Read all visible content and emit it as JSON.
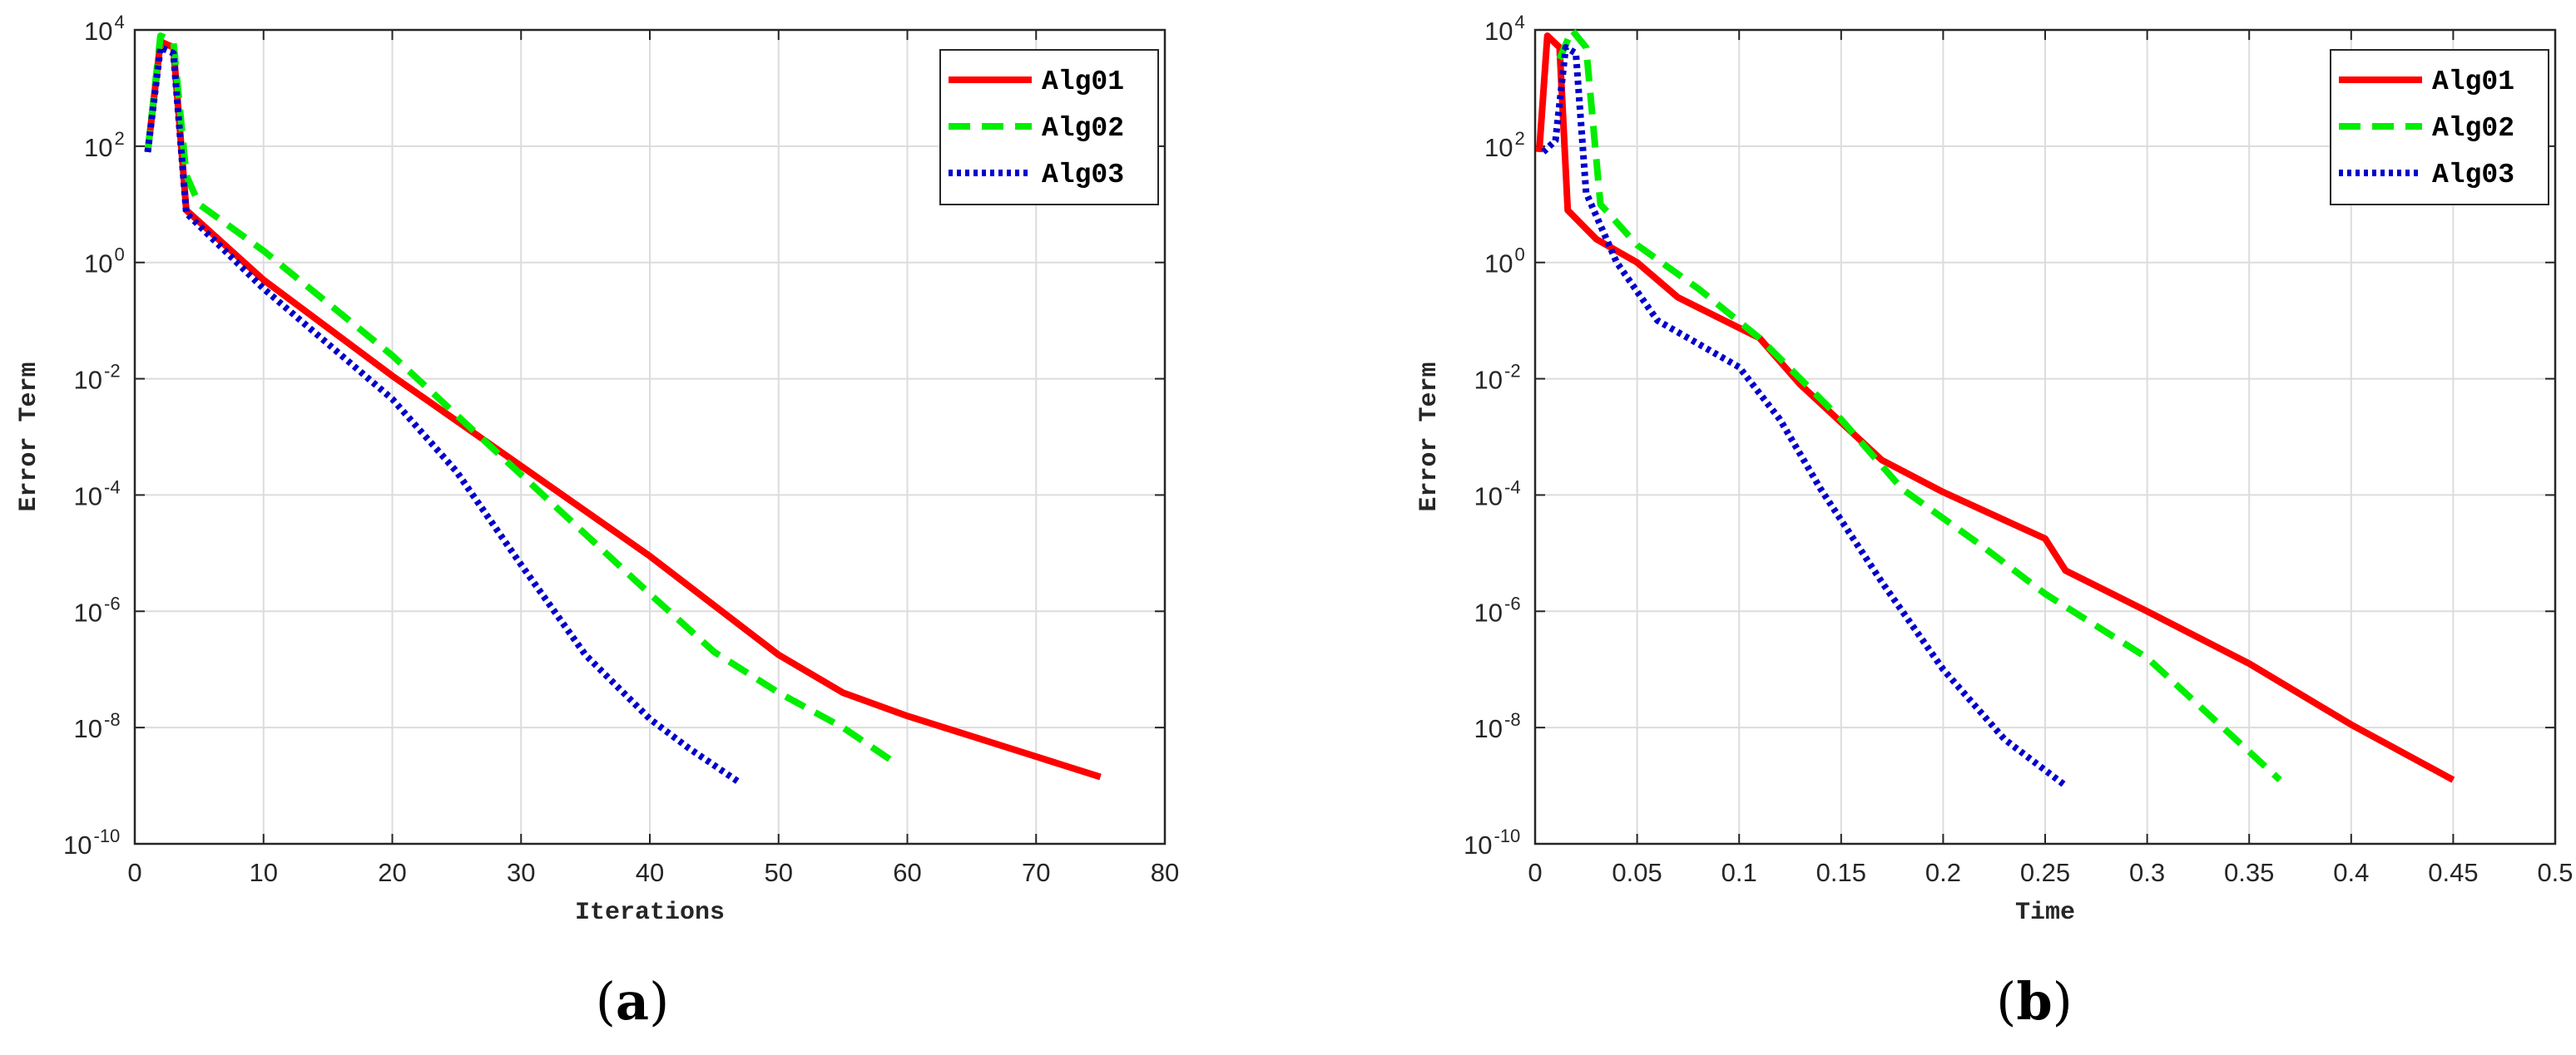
{
  "figure": {
    "background": "#ffffff",
    "axis_color": "#262626",
    "grid_color": "#dcdcdc"
  },
  "chart_data": [
    {
      "type": "line",
      "panel_caption": "(a)",
      "caption_letter": "a",
      "xlabel": "Iterations",
      "ylabel": "Error Term",
      "y_scale": "log",
      "xlim": [
        0,
        80
      ],
      "ylim_log10": [
        -10,
        4
      ],
      "x_ticks": [
        0,
        10,
        20,
        30,
        40,
        50,
        60,
        70,
        80
      ],
      "x_tick_labels": [
        "0",
        "10",
        "20",
        "30",
        "40",
        "50",
        "60",
        "70",
        "80"
      ],
      "y_tick_exponents": [
        4,
        2,
        0,
        -2,
        -4,
        -6,
        -8,
        -10
      ],
      "y_tick_base": "10",
      "grid": true,
      "legend_position": "top-right",
      "series": [
        {
          "name": "Alg01",
          "color": "#ff0000",
          "style": "solid",
          "x": [
            1,
            2,
            3,
            4,
            10,
            20,
            30,
            40,
            45,
            50,
            55,
            60,
            65,
            70,
            75
          ],
          "log10_y": [
            1.9,
            3.8,
            3.7,
            0.9,
            -0.3,
            -1.95,
            -3.5,
            -5.05,
            -5.9,
            -6.75,
            -7.4,
            -7.8,
            -8.15,
            -8.5,
            -8.85
          ]
        },
        {
          "name": "Alg02",
          "color": "#00ee00",
          "style": "dashed",
          "x": [
            1,
            2,
            3,
            4,
            5,
            10,
            20,
            30,
            40,
            45,
            50,
            55,
            59
          ],
          "log10_y": [
            1.9,
            3.9,
            3.8,
            1.5,
            1.0,
            0.2,
            -1.6,
            -3.65,
            -5.7,
            -6.7,
            -7.4,
            -8.0,
            -8.6
          ]
        },
        {
          "name": "Alg03",
          "color": "#0000cc",
          "style": "dotted",
          "x": [
            1,
            2,
            3,
            4,
            10,
            20,
            25,
            30,
            35,
            40,
            43,
            47
          ],
          "log10_y": [
            1.9,
            3.7,
            3.6,
            0.85,
            -0.45,
            -2.35,
            -3.6,
            -5.2,
            -6.75,
            -7.85,
            -8.35,
            -8.95
          ]
        }
      ]
    },
    {
      "type": "line",
      "panel_caption": "(b)",
      "caption_letter": "b",
      "xlabel": "Time",
      "ylabel": "Error Term",
      "y_scale": "log",
      "xlim": [
        0,
        0.5
      ],
      "ylim_log10": [
        -10,
        4
      ],
      "x_ticks": [
        0,
        0.05,
        0.1,
        0.15,
        0.2,
        0.25,
        0.3,
        0.35,
        0.4,
        0.45,
        0.5
      ],
      "x_tick_labels": [
        "0",
        "0.05",
        "0.1",
        "0.15",
        "0.2",
        "0.25",
        "0.3",
        "0.35",
        "0.4",
        "0.45",
        "0.5"
      ],
      "y_tick_exponents": [
        4,
        2,
        0,
        -2,
        -4,
        -6,
        -8,
        -10
      ],
      "y_tick_base": "10",
      "grid": true,
      "legend_position": "top-right",
      "series": [
        {
          "name": "Alg01",
          "color": "#ff0000",
          "style": "solid",
          "x": [
            0.002,
            0.006,
            0.012,
            0.016,
            0.03,
            0.05,
            0.07,
            0.11,
            0.13,
            0.17,
            0.2,
            0.25,
            0.26,
            0.3,
            0.35,
            0.4,
            0.45
          ],
          "log10_y": [
            1.9,
            3.9,
            3.7,
            0.9,
            0.4,
            0.0,
            -0.6,
            -1.3,
            -2.1,
            -3.4,
            -3.95,
            -4.75,
            -5.3,
            -6.0,
            -6.9,
            -7.95,
            -8.9
          ]
        },
        {
          "name": "Alg02",
          "color": "#00ee00",
          "style": "dashed",
          "x": [
            0.012,
            0.018,
            0.025,
            0.032,
            0.05,
            0.08,
            0.11,
            0.15,
            0.18,
            0.22,
            0.25,
            0.3,
            0.365
          ],
          "log10_y": [
            3.5,
            4.0,
            3.7,
            1.0,
            0.3,
            -0.45,
            -1.3,
            -2.7,
            -3.9,
            -4.9,
            -5.7,
            -6.8,
            -8.9
          ]
        },
        {
          "name": "Alg03",
          "color": "#0000cc",
          "style": "dotted",
          "x": [
            0.004,
            0.01,
            0.015,
            0.02,
            0.025,
            0.04,
            0.06,
            0.08,
            0.1,
            0.12,
            0.14,
            0.17,
            0.2,
            0.23,
            0.26
          ],
          "log10_y": [
            1.9,
            2.1,
            3.7,
            3.6,
            1.2,
            0.0,
            -1.0,
            -1.4,
            -1.8,
            -2.7,
            -3.9,
            -5.5,
            -7.0,
            -8.2,
            -9.0
          ]
        }
      ]
    }
  ]
}
